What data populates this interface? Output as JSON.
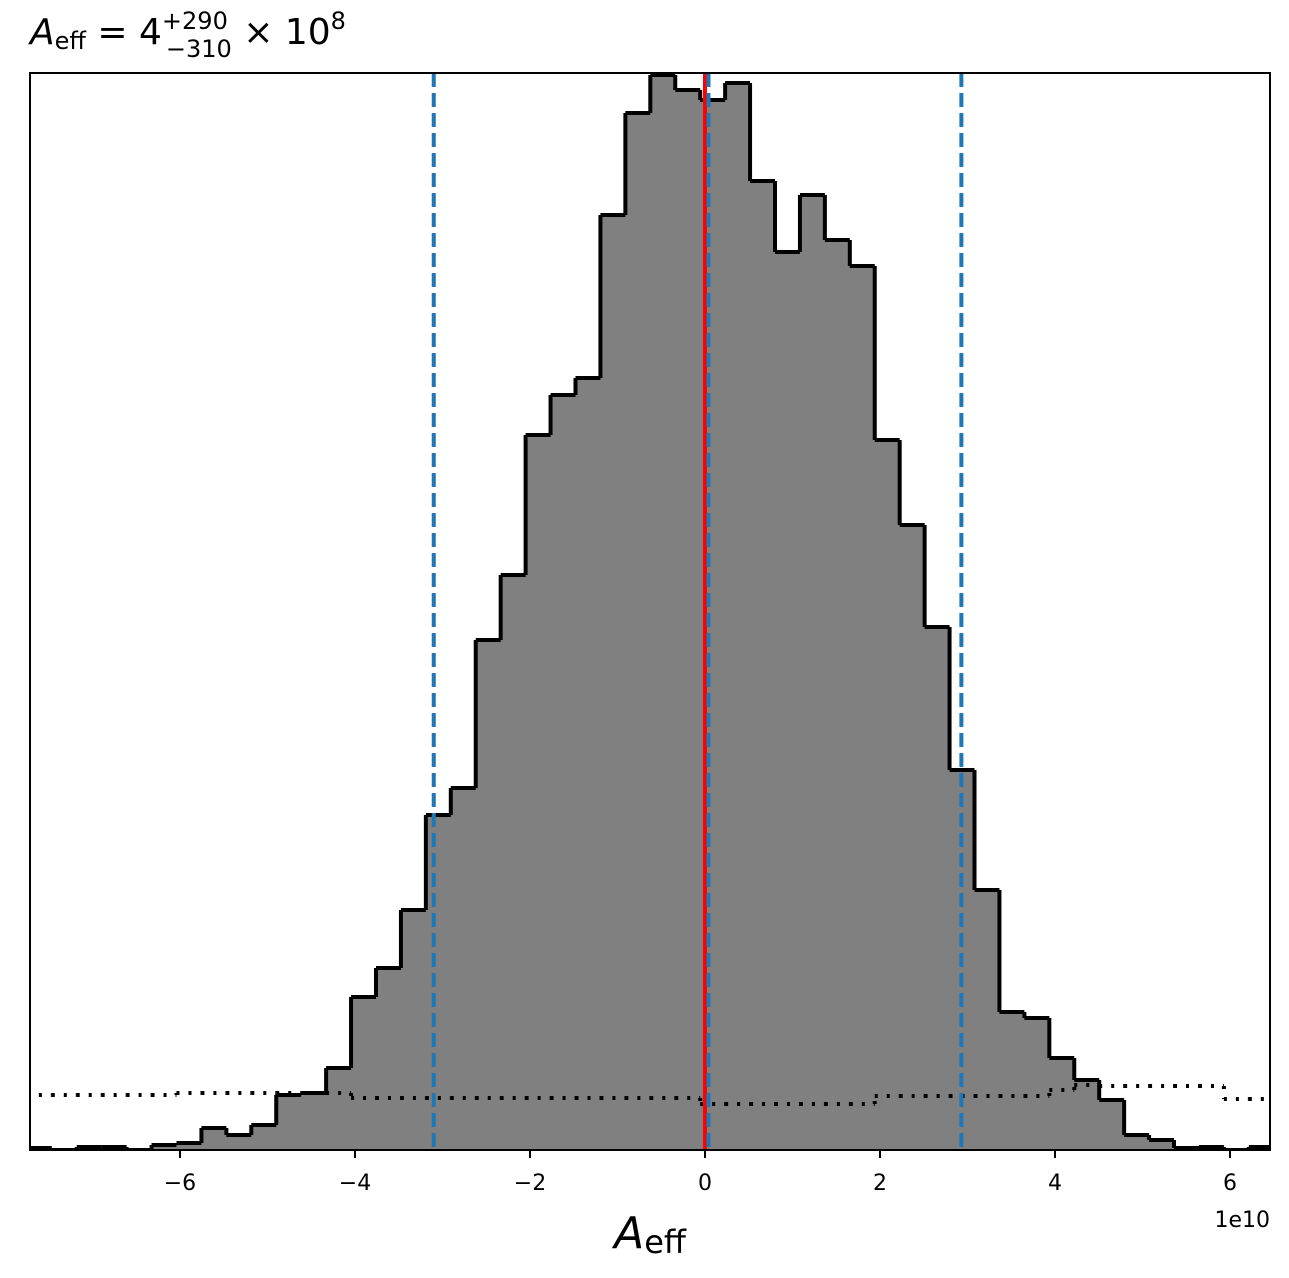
{
  "chart_data": {
    "type": "histogram",
    "title": {
      "main": "A",
      "main_sub": "eff",
      "middle": " = 4",
      "sup": "+290",
      "sub": "−310",
      "tail": " × 10",
      "exp": "8"
    },
    "x_label": {
      "main": "A",
      "sub": "eff"
    },
    "x_offset_label": "1e10",
    "bins": [
      -7.75,
      -7.465,
      -7.18,
      -6.895,
      -6.61,
      -6.325,
      -6.04,
      -5.755,
      -5.47,
      -5.185,
      -4.9,
      -4.615,
      -4.33,
      -4.045,
      -3.76,
      -3.475,
      -3.19,
      -2.905,
      -2.62,
      -2.335,
      -2.05,
      -1.765,
      -1.48,
      -1.195,
      -0.91,
      -0.625,
      -0.34,
      -0.055,
      0.23,
      0.515,
      0.8,
      1.085,
      1.37,
      1.655,
      1.94,
      2.225,
      2.51,
      2.795,
      3.08,
      3.365,
      3.65,
      3.935,
      4.22,
      4.505,
      4.79,
      5.075,
      5.36,
      5.645,
      5.93,
      6.215,
      6.5
    ],
    "series": [
      {
        "color": "#808080",
        "edge_color": "#000000",
        "style": "filled",
        "values": [
          2,
          0,
          3,
          3,
          0,
          5,
          7,
          22,
          15,
          25,
          55,
          57,
          82,
          153,
          182,
          240,
          335,
          362,
          510,
          575,
          715,
          755,
          772,
          935,
          1037,
          1075,
          1060,
          1050,
          1067,
          969,
          898,
          955,
          910,
          884,
          710,
          625,
          523,
          380,
          260,
          138,
          132,
          92,
          70,
          50,
          15,
          10,
          2,
          3,
          0,
          3
        ]
      },
      {
        "color": "#000000",
        "style": "dotted",
        "values": [
          55,
          55,
          55,
          55,
          55,
          55,
          57,
          57,
          57,
          57,
          57,
          57,
          57,
          52,
          52,
          52,
          52,
          52,
          52,
          52,
          52,
          52,
          52,
          52,
          52,
          52,
          52,
          46,
          46,
          46,
          46,
          46,
          46,
          46,
          54,
          54,
          54,
          54,
          54,
          54,
          54,
          60,
          65,
          64,
          64,
          64,
          64,
          64,
          51,
          51
        ]
      }
    ],
    "vlines": [
      {
        "value": -3.1,
        "color": "#1f77b4",
        "style": "dashed"
      },
      {
        "value": 0.0,
        "color": "#ff0000",
        "style": "solid"
      },
      {
        "value": 0.04,
        "color": "#1f77b4",
        "style": "dashed"
      },
      {
        "value": 2.93,
        "color": "#1f77b4",
        "style": "dashed"
      }
    ],
    "xlim": [
      -7.714,
      6.457
    ],
    "ylim": [
      0,
      1077
    ],
    "xticks": [
      {
        "value": -6,
        "label": "−6"
      },
      {
        "value": -4,
        "label": "−4"
      },
      {
        "value": -2,
        "label": "−2"
      },
      0,
      2,
      4,
      6
    ]
  }
}
